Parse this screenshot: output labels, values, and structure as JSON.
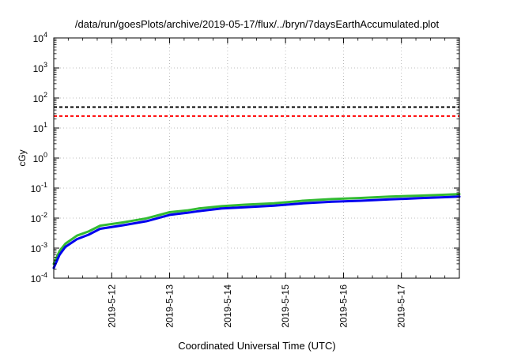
{
  "chart_data": {
    "type": "line",
    "title": "/data/run/goesPlots/archive/2019-05-17/flux/../bryn/7daysEarthAccumulated.plot",
    "xlabel": "Coordinated Universal Time (UTC)",
    "ylabel": "cGy",
    "x_axis": {
      "unit": "day",
      "range": [
        "2019-05-11 00:00",
        "2019-05-18 00:00"
      ],
      "ticks": [
        "2019-5-12",
        "2019-5-13",
        "2019-5-14",
        "2019-5-15",
        "2019-5-16",
        "2019-5-17"
      ]
    },
    "y_axis": {
      "scale": "log",
      "range": [
        0.0001,
        10000
      ],
      "ticks": [
        {
          "base": "10",
          "exp": "-4"
        },
        {
          "base": "10",
          "exp": "-3"
        },
        {
          "base": "10",
          "exp": "-2"
        },
        {
          "base": "10",
          "exp": "-1"
        },
        {
          "base": "10",
          "exp": "0"
        },
        {
          "base": "10",
          "exp": "1"
        },
        {
          "base": "10",
          "exp": "2"
        },
        {
          "base": "10",
          "exp": "3"
        },
        {
          "base": "10",
          "exp": "4"
        }
      ]
    },
    "grid": true,
    "thresholds": [
      {
        "y": 50,
        "color": "#000000",
        "style": "dashed"
      },
      {
        "y": 25,
        "color": "#ff0000",
        "style": "dashed"
      }
    ],
    "series": [
      {
        "color": "#33bb33",
        "points": [
          [
            "2019-05-11 00:00",
            0.0003
          ],
          [
            "2019-05-11 02:24",
            0.0008
          ],
          [
            "2019-05-11 04:48",
            0.0014
          ],
          [
            "2019-05-11 09:36",
            0.0026
          ],
          [
            "2019-05-11 14:24",
            0.0036
          ],
          [
            "2019-05-11 19:12",
            0.0056
          ],
          [
            "2019-05-12 04:48",
            0.0072
          ],
          [
            "2019-05-12 14:24",
            0.0098
          ],
          [
            "2019-05-13 00:00",
            0.0158
          ],
          [
            "2019-05-13 07:12",
            0.018
          ],
          [
            "2019-05-13 12:00",
            0.021
          ],
          [
            "2019-05-13 21:36",
            0.025
          ],
          [
            "2019-05-14 07:12",
            0.028
          ],
          [
            "2019-05-14 19:12",
            0.031
          ],
          [
            "2019-05-15 07:12",
            0.038
          ],
          [
            "2019-05-15 19:12",
            0.043
          ],
          [
            "2019-05-16 07:12",
            0.047
          ],
          [
            "2019-05-16 19:12",
            0.052
          ],
          [
            "2019-05-17 07:12",
            0.056
          ],
          [
            "2019-05-17 19:12",
            0.061
          ],
          [
            "2019-05-18 00:00",
            0.063
          ]
        ]
      },
      {
        "color": "#0000ee",
        "points": [
          [
            "2019-05-11 00:00",
            0.00022
          ],
          [
            "2019-05-11 02:24",
            0.0006
          ],
          [
            "2019-05-11 04:48",
            0.0011
          ],
          [
            "2019-05-11 09:36",
            0.002
          ],
          [
            "2019-05-11 14:24",
            0.0028
          ],
          [
            "2019-05-11 19:12",
            0.0044
          ],
          [
            "2019-05-12 04:48",
            0.0058
          ],
          [
            "2019-05-12 14:24",
            0.0079
          ],
          [
            "2019-05-13 00:00",
            0.0128
          ],
          [
            "2019-05-13 07:12",
            0.015
          ],
          [
            "2019-05-13 12:00",
            0.017
          ],
          [
            "2019-05-13 21:36",
            0.021
          ],
          [
            "2019-05-14 07:12",
            0.023
          ],
          [
            "2019-05-14 19:12",
            0.026
          ],
          [
            "2019-05-15 07:12",
            0.031
          ],
          [
            "2019-05-15 19:12",
            0.035
          ],
          [
            "2019-05-16 07:12",
            0.038
          ],
          [
            "2019-05-16 19:12",
            0.042
          ],
          [
            "2019-05-17 07:12",
            0.046
          ],
          [
            "2019-05-17 19:12",
            0.05
          ],
          [
            "2019-05-18 00:00",
            0.052
          ]
        ]
      }
    ]
  }
}
